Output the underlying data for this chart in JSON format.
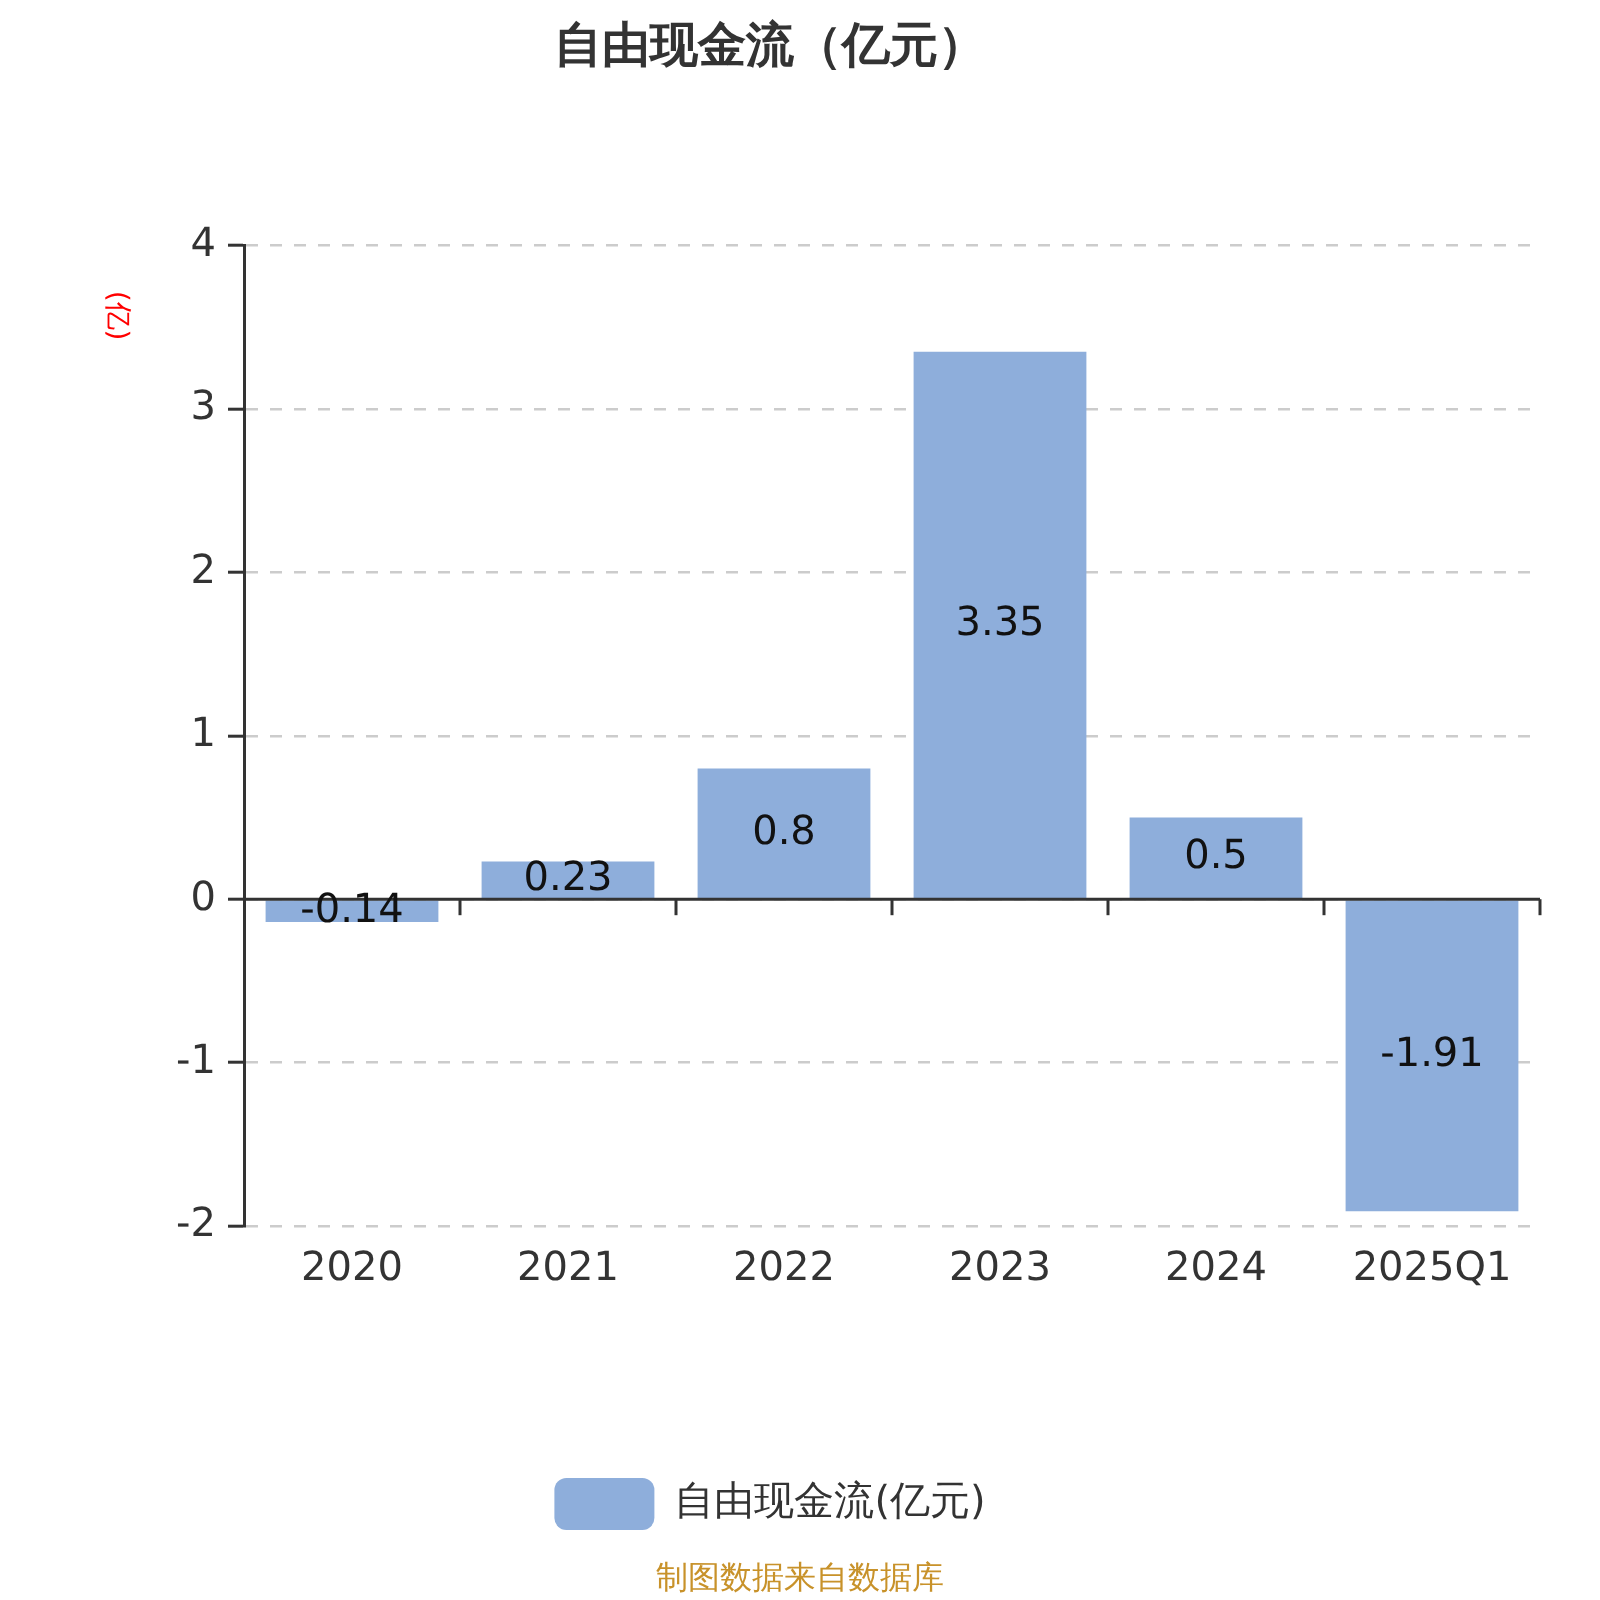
{
  "chart_data": {
    "type": "bar",
    "title": "自由现金流（亿元）",
    "ylabel": "(亿)",
    "categories": [
      "2020",
      "2021",
      "2022",
      "2023",
      "2024",
      "2025Q1"
    ],
    "series": [
      {
        "name": "自由现金流(亿元)",
        "color": "#8eaedb",
        "values": [
          -0.14,
          0.23,
          0.8,
          3.35,
          0.5,
          -1.91
        ]
      }
    ],
    "ylim": [
      -2,
      4
    ],
    "yticks": [
      -2,
      -1,
      0,
      1,
      2,
      3,
      4
    ],
    "grid": "y",
    "legend": "bottom",
    "data_labels": true,
    "annotations": [
      "制图数据来自数据库"
    ]
  }
}
